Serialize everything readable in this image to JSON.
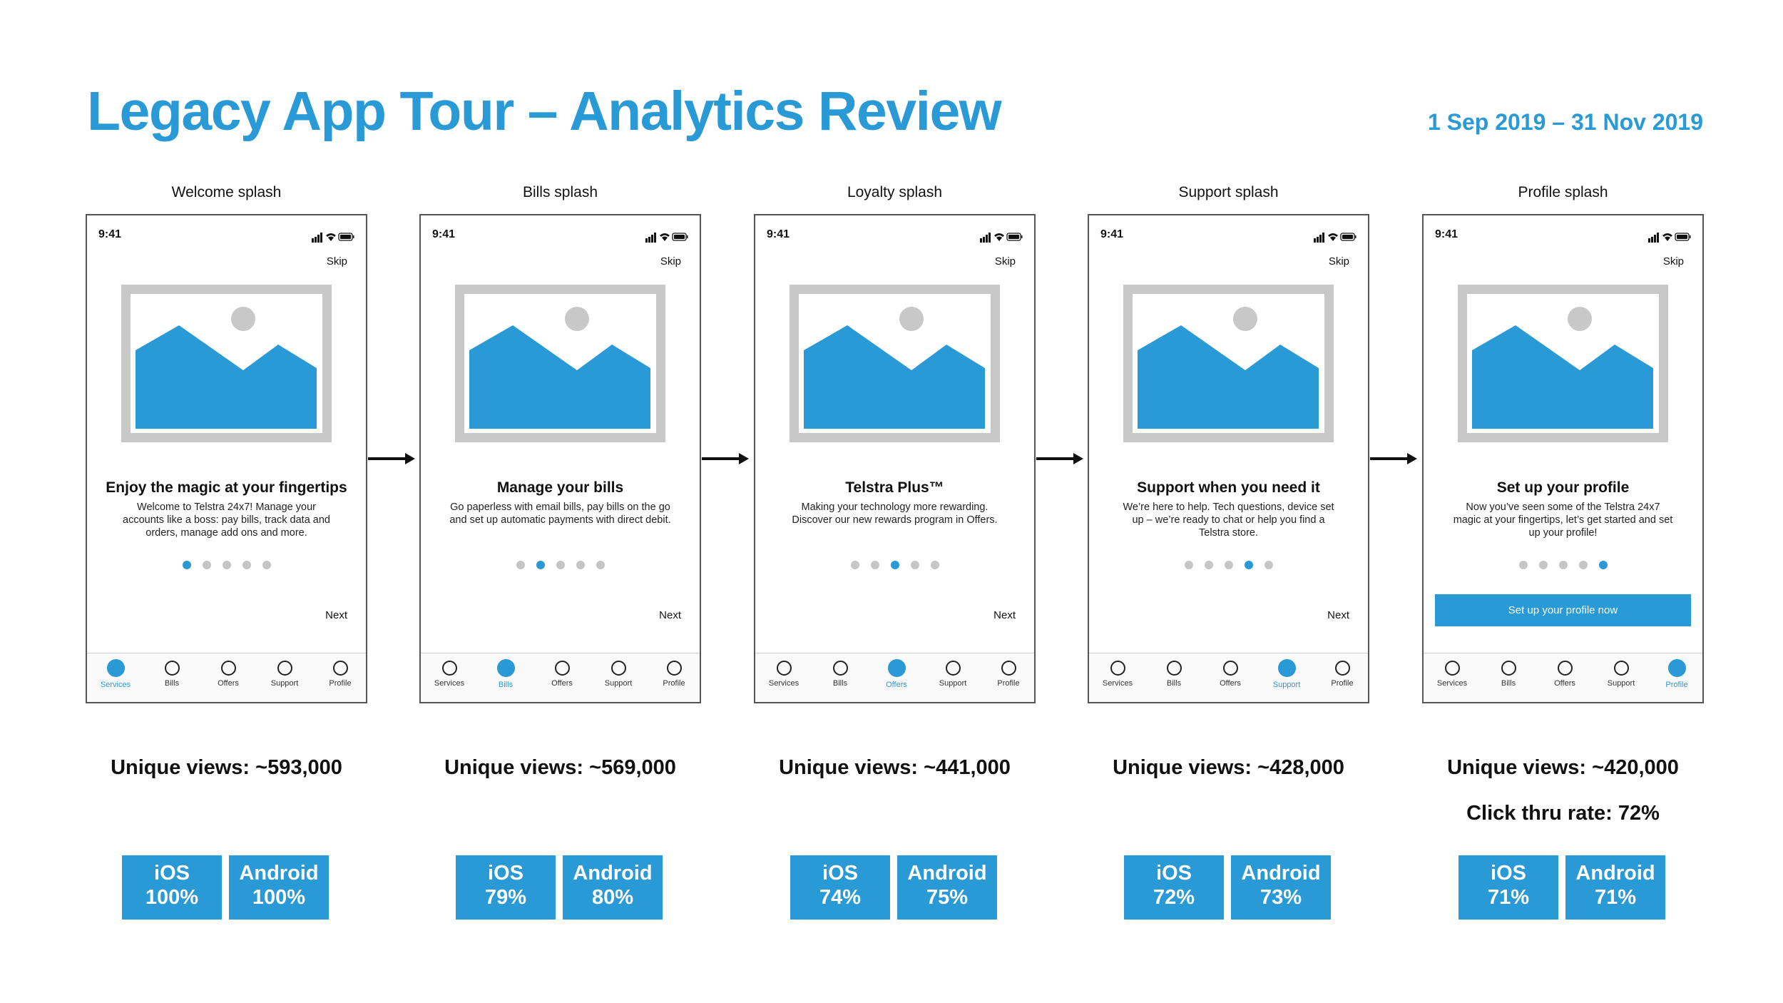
{
  "title": "Legacy App Tour – Analytics Review",
  "date_range": "1 Sep 2019 – 31 Nov 2019",
  "colors": {
    "accent": "#2a9ad6",
    "text": "#111111",
    "dot_inactive": "#c6c6c6",
    "image_frame": "#c8c8c8"
  },
  "icons": {
    "status": [
      "signal-icon",
      "wifi-icon",
      "battery-icon"
    ],
    "image": "image-placeholder-icon",
    "tab": "circle-icon",
    "flow": "arrow-right-icon"
  },
  "tabs": [
    "Services",
    "Bills",
    "Offers",
    "Support",
    "Profile"
  ],
  "screens": [
    {
      "label": "Welcome splash",
      "time": "9:41",
      "skip": "Skip",
      "headline": "Enjoy the magic at your fingertips",
      "body": "Welcome to Telstra 24x7! Manage your accounts like a boss: pay bills, track data and orders, manage add ons and more.",
      "active_dot": 0,
      "next": "Next",
      "cta": "",
      "active_tab": 0,
      "unique_views": "Unique views: ~593,000",
      "click_thru": "",
      "ios_label": "iOS",
      "ios_value": "100%",
      "android_label": "Android",
      "android_value": "100%"
    },
    {
      "label": "Bills splash",
      "time": "9:41",
      "skip": "Skip",
      "headline": "Manage your bills",
      "body": "Go paperless with email bills, pay bills on the go and set up automatic payments with direct debit.",
      "active_dot": 1,
      "next": "Next",
      "cta": "",
      "active_tab": 1,
      "unique_views": "Unique views: ~569,000",
      "click_thru": "",
      "ios_label": "iOS",
      "ios_value": "79%",
      "android_label": "Android",
      "android_value": "80%"
    },
    {
      "label": "Loyalty splash",
      "time": "9:41",
      "skip": "Skip",
      "headline": "Telstra Plus™",
      "body": "Making your technology more rewarding. Discover our new rewards program in Offers.",
      "active_dot": 2,
      "next": "Next",
      "cta": "",
      "active_tab": 2,
      "unique_views": "Unique views: ~441,000",
      "click_thru": "",
      "ios_label": "iOS",
      "ios_value": "74%",
      "android_label": "Android",
      "android_value": "75%"
    },
    {
      "label": "Support splash",
      "time": "9:41",
      "skip": "Skip",
      "headline": "Support when you need it",
      "body": "We’re here to help. Tech questions, device set up – we’re ready to chat or help you find a Telstra store.",
      "active_dot": 3,
      "next": "Next",
      "cta": "",
      "active_tab": 3,
      "unique_views": "Unique views: ~428,000",
      "click_thru": "",
      "ios_label": "iOS",
      "ios_value": "72%",
      "android_label": "Android",
      "android_value": "73%"
    },
    {
      "label": "Profile splash",
      "time": "9:41",
      "skip": "Skip",
      "headline": "Set up your profile",
      "body": "Now you’ve seen some of the Telstra 24x7 magic at your fingertips, let’s get started and set up your profile!",
      "active_dot": 4,
      "next": "",
      "cta": "Set up your profile now",
      "active_tab": 4,
      "unique_views": "Unique views: ~420,000",
      "click_thru": "Click thru rate: 72%",
      "ios_label": "iOS",
      "ios_value": "71%",
      "android_label": "Android",
      "android_value": "71%"
    }
  ]
}
